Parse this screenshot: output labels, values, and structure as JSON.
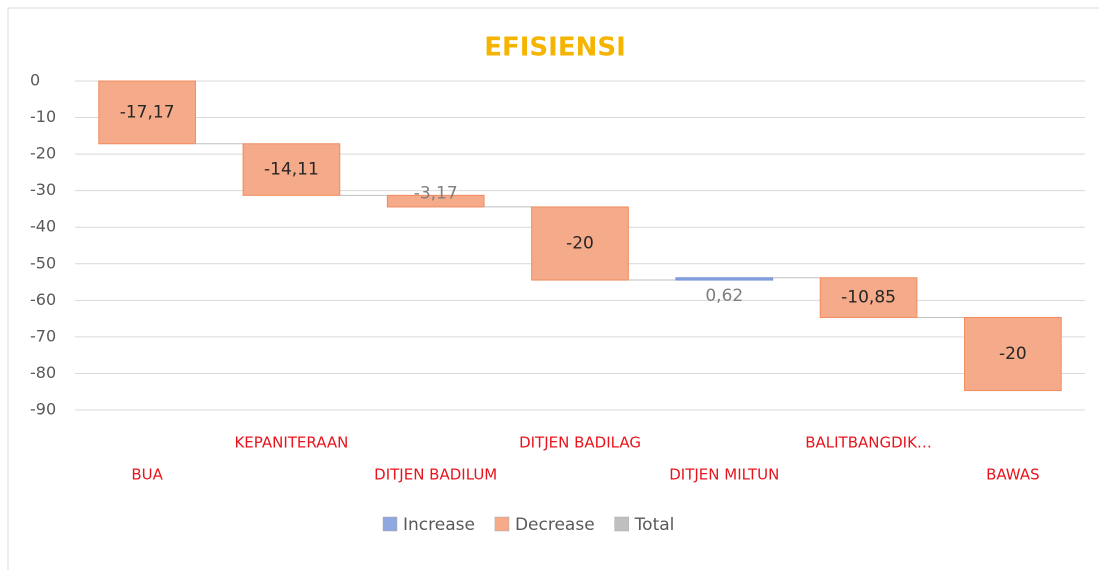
{
  "chart_data": {
    "type": "waterfall",
    "title": "EFISIENSI",
    "categories": [
      "BUA",
      "KEPANITERAAN",
      "DITJEN BADILUM",
      "DITJEN BADILAG",
      "DITJEN MILTUN",
      "BALITBANGDIK…",
      "BAWAS"
    ],
    "values": [
      -17.17,
      -14.11,
      -3.17,
      -20,
      0.62,
      -10.85,
      -20
    ],
    "value_labels": [
      "-17,17",
      "-14,11",
      "-3,17",
      "-20",
      "0,62",
      "-10,85",
      "-20"
    ],
    "ylim": [
      -90,
      0
    ],
    "yticks": [
      0,
      -10,
      -20,
      -30,
      -40,
      -50,
      -60,
      -70,
      -80,
      -90
    ],
    "grid": true,
    "legend": [
      {
        "name": "Increase",
        "color": "#8fa8e0"
      },
      {
        "name": "Decrease",
        "color": "#f5ab89"
      },
      {
        "name": "Total",
        "color": "#bfbfbf"
      }
    ],
    "legend_position": "bottom"
  }
}
